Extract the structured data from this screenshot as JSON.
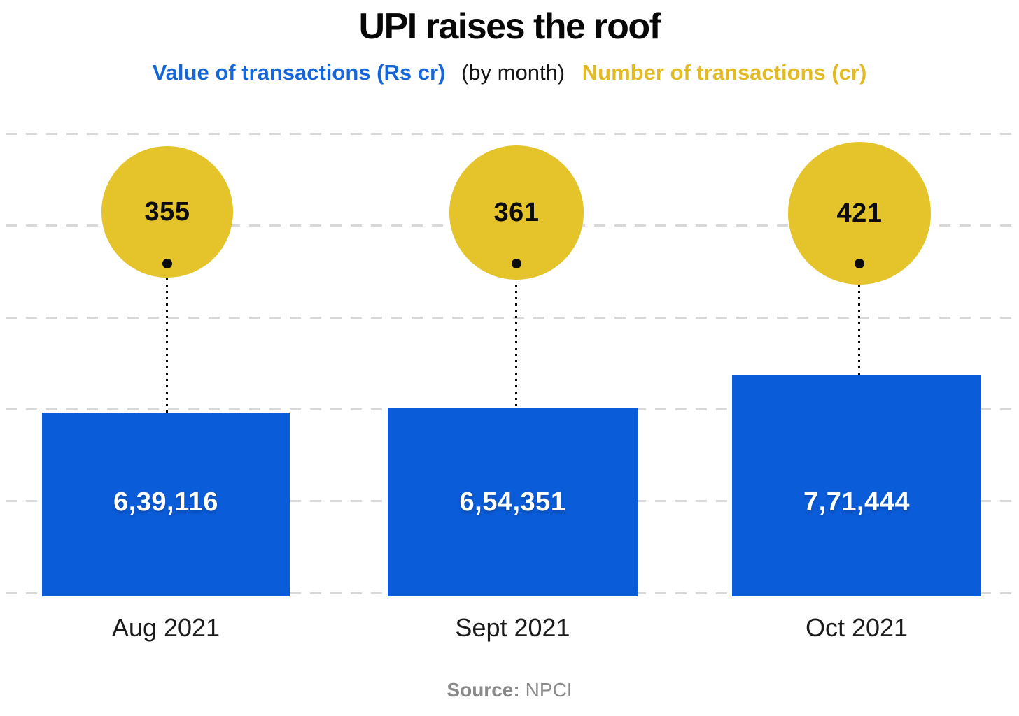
{
  "title": "UPI raises the roof",
  "legend": {
    "value_label": "Value of transactions (Rs cr)",
    "middle_label": "(by month)",
    "number_label": "Number of transactions (cr)"
  },
  "source": {
    "prefix": "Source:",
    "name": "NPCI"
  },
  "colors": {
    "bar_blue": "#0b5cd9",
    "legend_blue_text": "#1566db",
    "bubble_yellow": "#e4c32b",
    "legend_yellow_text": "#e2bb24",
    "gridline_gray": "#d8d8d8",
    "bar_label_white": "#ffffff",
    "source_gray": "#8a8a8a",
    "text_black": "#0c0c0c"
  },
  "chart_data": {
    "type": "bar",
    "subtype": "bar-with-area-proportional-bubbles",
    "categories": [
      "Aug 2021",
      "Sept 2021",
      "Oct 2021"
    ],
    "series": [
      {
        "name": "Value of transactions (Rs cr)",
        "role": "bar",
        "color": "#0b5cd9",
        "values": [
          639116,
          654351,
          771444
        ],
        "labels": [
          "6,39,116",
          "6,54,351",
          "7,71,444"
        ]
      },
      {
        "name": "Number of transactions (cr)",
        "role": "bubble",
        "color": "#e4c32b",
        "values": [
          355,
          361,
          421
        ],
        "labels": [
          "355",
          "361",
          "421"
        ]
      }
    ],
    "title": "UPI raises the roof",
    "xlabel": "",
    "ylabel": "",
    "axis_tick_labels_visible": false,
    "gridlines": {
      "count": 6,
      "style": "dashed horizontal",
      "color": "#d8d8d8"
    },
    "legend_position": "top",
    "bar_baseline": "bottom gridline"
  }
}
